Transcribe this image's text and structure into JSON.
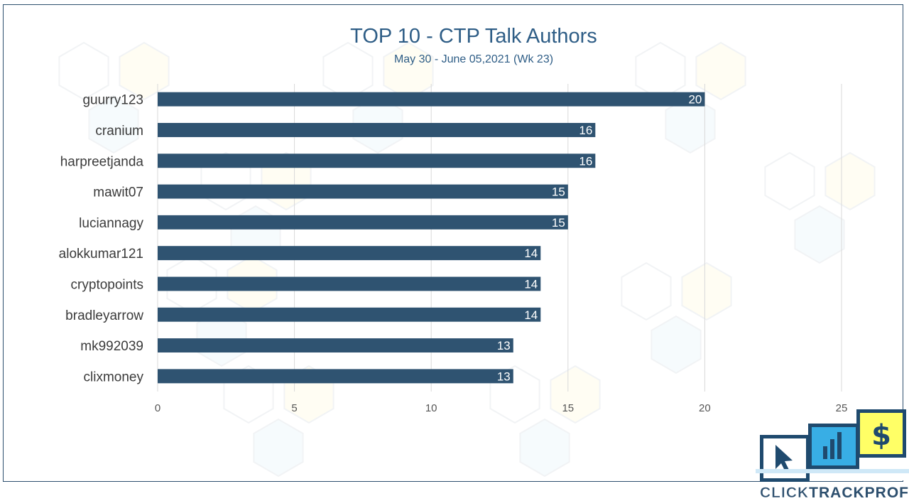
{
  "chart_data": {
    "type": "bar",
    "orientation": "horizontal",
    "title": "TOP 10 - CTP Talk Authors",
    "subtitle": "May 30 - June 05,2021 (Wk 23)",
    "categories": [
      "guurry123",
      "cranium",
      "harpreetjanda",
      "mawit07",
      "luciannagy",
      "alokkumar121",
      "cryptopoints",
      "bradleyarrow",
      "mk992039",
      "clixmoney"
    ],
    "values": [
      20,
      16,
      16,
      15,
      15,
      14,
      14,
      14,
      13,
      13
    ],
    "xlim": [
      0,
      25
    ],
    "xticks": [
      0,
      5,
      10,
      15,
      20,
      25
    ],
    "grid": true,
    "data_labels": true,
    "bar_color": "#2f5371"
  },
  "logo": {
    "text_parts": [
      "CLICK",
      "TRACK",
      "PROFIT"
    ],
    "icons": [
      "cursor-icon",
      "bar-chart-icon",
      "dollar-icon"
    ],
    "colors": {
      "cursor": "#ffffff",
      "chart": "#38aee5",
      "dollar": "#ffff66",
      "text": "#2d4f6e"
    }
  }
}
